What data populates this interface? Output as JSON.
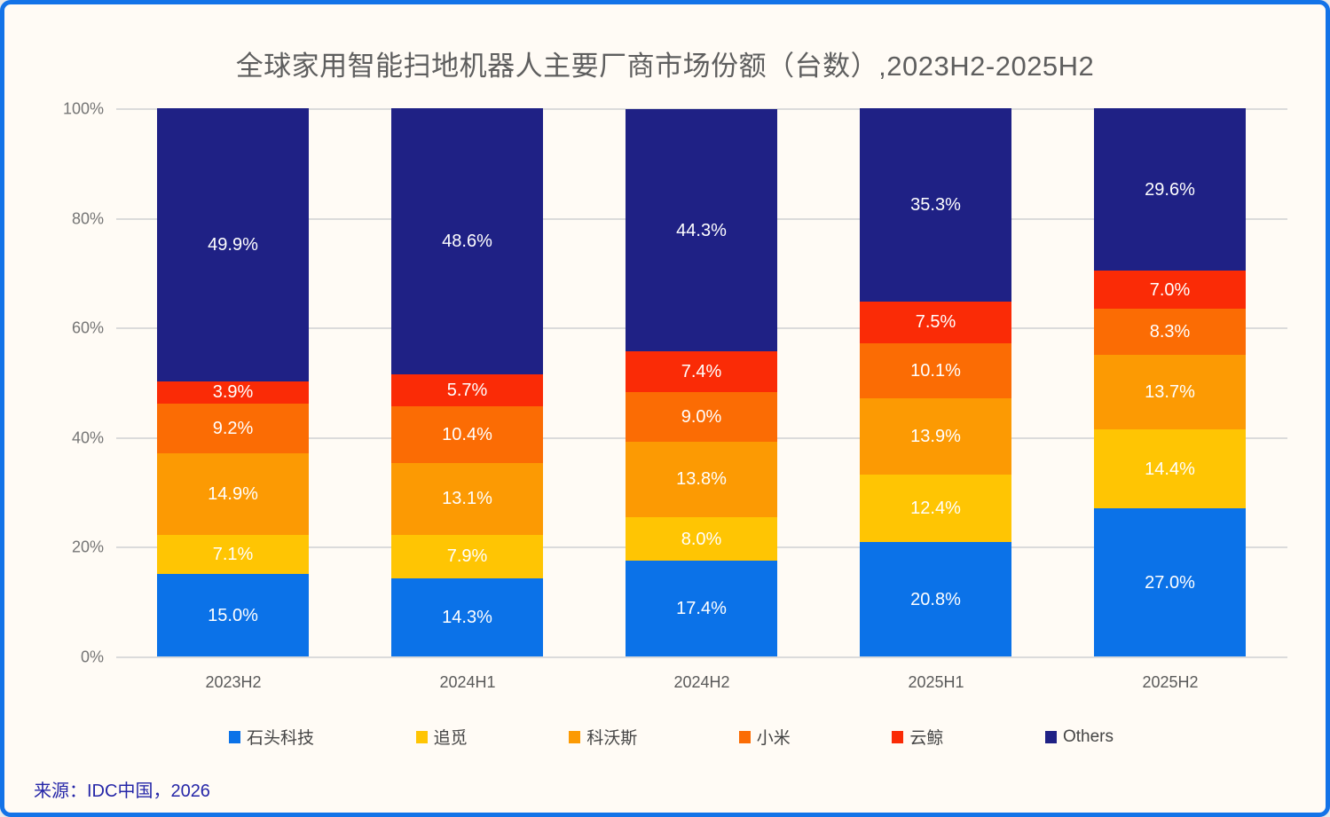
{
  "title": "全球家用智能扫地机器人主要厂商市场份额（台数）,2023H2-2025H2",
  "source": "来源：IDC中国，2026",
  "colors": {
    "frame_border": "#1373E8",
    "background": "#FFFBF5",
    "gridline": "#DBDBDB",
    "title_text": "#5E5E5E",
    "axis_text": "#757575",
    "bar_label_text": "#FFFFFF",
    "source_text": "#2526A8"
  },
  "chart_data": {
    "type": "bar",
    "stacked": true,
    "title": "全球家用智能扫地机器人主要厂商市场份额（台数）,2023H2-2025H2",
    "categories": [
      "2023H2",
      "2024H1",
      "2024H2",
      "2025H1",
      "2025H2"
    ],
    "series": [
      {
        "name": "石头科技",
        "color": "#0B72E8",
        "values": [
          15.0,
          14.3,
          17.4,
          20.8,
          27.0
        ]
      },
      {
        "name": "追觅",
        "color": "#FFC503",
        "values": [
          7.1,
          7.9,
          8.0,
          12.4,
          14.4
        ]
      },
      {
        "name": "科沃斯",
        "color": "#FC9A03",
        "values": [
          14.9,
          13.1,
          13.8,
          13.9,
          13.7
        ]
      },
      {
        "name": "小米",
        "color": "#FB6C04",
        "values": [
          9.2,
          10.4,
          9.0,
          10.1,
          8.3
        ]
      },
      {
        "name": "云鲸",
        "color": "#FA2B06",
        "values": [
          3.9,
          5.7,
          7.4,
          7.5,
          7.0
        ]
      },
      {
        "name": "Others",
        "color": "#1F2185",
        "values": [
          49.9,
          48.6,
          44.3,
          35.3,
          29.6
        ]
      }
    ],
    "value_label_suffix": "%",
    "y_axis": {
      "min": 0,
      "max": 100,
      "grid": true,
      "ticks": [
        {
          "label": "0%",
          "value": 0
        },
        {
          "label": "20%",
          "value": 20
        },
        {
          "label": "40%",
          "value": 40
        },
        {
          "label": "60%",
          "value": 60
        },
        {
          "label": "80%",
          "value": 80
        },
        {
          "label": "100%",
          "value": 100
        }
      ]
    },
    "legend_position": "bottom"
  }
}
